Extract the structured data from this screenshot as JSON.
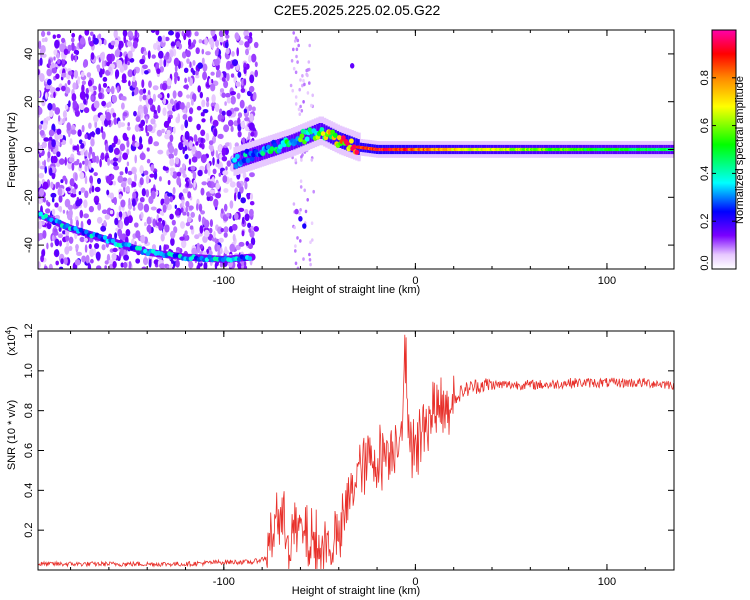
{
  "chart_data": [
    {
      "type": "heatmap",
      "title": "C2E5.2025.225.02.05.G22",
      "xlabel": "Height of straight line (km)",
      "ylabel": "Frequency (Hz)",
      "xlim": [
        -197,
        135
      ],
      "ylim": [
        -50,
        50
      ],
      "x_ticks": [
        -100,
        0,
        100
      ],
      "x_tick_labels": [
        "-100",
        "0",
        "100"
      ],
      "y_ticks": [
        -40,
        -20,
        0,
        20,
        40
      ],
      "y_tick_labels": [
        "-40",
        "-20",
        "0",
        "20",
        "40"
      ],
      "grid": false,
      "colorbar": {
        "label": "Normalized spectral amplitude",
        "range": [
          0,
          1
        ],
        "ticks": [
          0,
          0.2,
          0.4,
          0.6,
          0.8
        ],
        "tick_labels": [
          "0.0",
          "0.2",
          "0.4",
          "0.6",
          "0.8"
        ],
        "colors": [
          "#ffffff",
          "#6a00ff",
          "#0000ff",
          "#00ffff",
          "#00ff00",
          "#ffff00",
          "#ff8800",
          "#ff0000",
          "#ff00aa"
        ]
      },
      "ridge": {
        "lower_branch_x": [
          -197,
          -180,
          -160,
          -140,
          -120,
          -100,
          -85
        ],
        "lower_branch_freq": [
          -27,
          -33,
          -38,
          -43,
          -45,
          -46,
          -45
        ],
        "main_branch_x": [
          -95,
          -80,
          -65,
          -50,
          -40,
          -30,
          -20,
          -10,
          0,
          20,
          60,
          100,
          135
        ],
        "main_branch_freq": [
          -5,
          -1,
          3,
          8,
          4,
          1,
          0,
          0,
          0,
          0,
          0,
          0,
          0
        ],
        "main_branch_amplitude": [
          0.3,
          0.35,
          0.4,
          0.5,
          0.8,
          0.85,
          0.9,
          0.9,
          0.85,
          0.7,
          0.6,
          0.5,
          0.45
        ]
      }
    },
    {
      "type": "line",
      "xlabel": "Height of straight line (km)",
      "ylabel": "SNR (10 * v/v)",
      "multiplier_label": "(x10",
      "multiplier_exp": "4",
      "multiplier_close": ")",
      "xlim": [
        -197,
        135
      ],
      "ylim": [
        0,
        1.2
      ],
      "x_ticks": [
        -100,
        0,
        100
      ],
      "x_tick_labels": [
        "-100",
        "0",
        "100"
      ],
      "y_ticks": [
        0.2,
        0.4,
        0.6,
        0.8,
        1.0,
        1.2
      ],
      "y_tick_labels": [
        "0.2",
        "0.4",
        "0.6",
        "0.8",
        "1.0",
        "1.2"
      ],
      "grid": false,
      "series": [
        {
          "color": "#e8302a",
          "x": [
            -197,
            -180,
            -160,
            -140,
            -120,
            -100,
            -85,
            -78,
            -75,
            -72,
            -70,
            -65,
            -60,
            -55,
            -50,
            -45,
            -40,
            -35,
            -30,
            -25,
            -20,
            -15,
            -10,
            -7,
            -5,
            -3,
            0,
            5,
            10,
            15,
            20,
            25,
            30,
            35,
            40,
            50,
            60,
            70,
            80,
            90,
            100,
            110,
            120,
            135
          ],
          "y": [
            0.03,
            0.03,
            0.03,
            0.03,
            0.03,
            0.04,
            0.04,
            0.06,
            0.2,
            0.3,
            0.22,
            0.18,
            0.2,
            0.15,
            0.1,
            0.13,
            0.15,
            0.35,
            0.5,
            0.55,
            0.55,
            0.6,
            0.65,
            0.75,
            0.8,
            0.7,
            0.6,
            0.75,
            0.8,
            0.82,
            0.86,
            0.9,
            0.92,
            0.93,
            0.93,
            0.93,
            0.93,
            0.93,
            0.94,
            0.94,
            0.94,
            0.94,
            0.94,
            0.93
          ]
        }
      ]
    }
  ]
}
